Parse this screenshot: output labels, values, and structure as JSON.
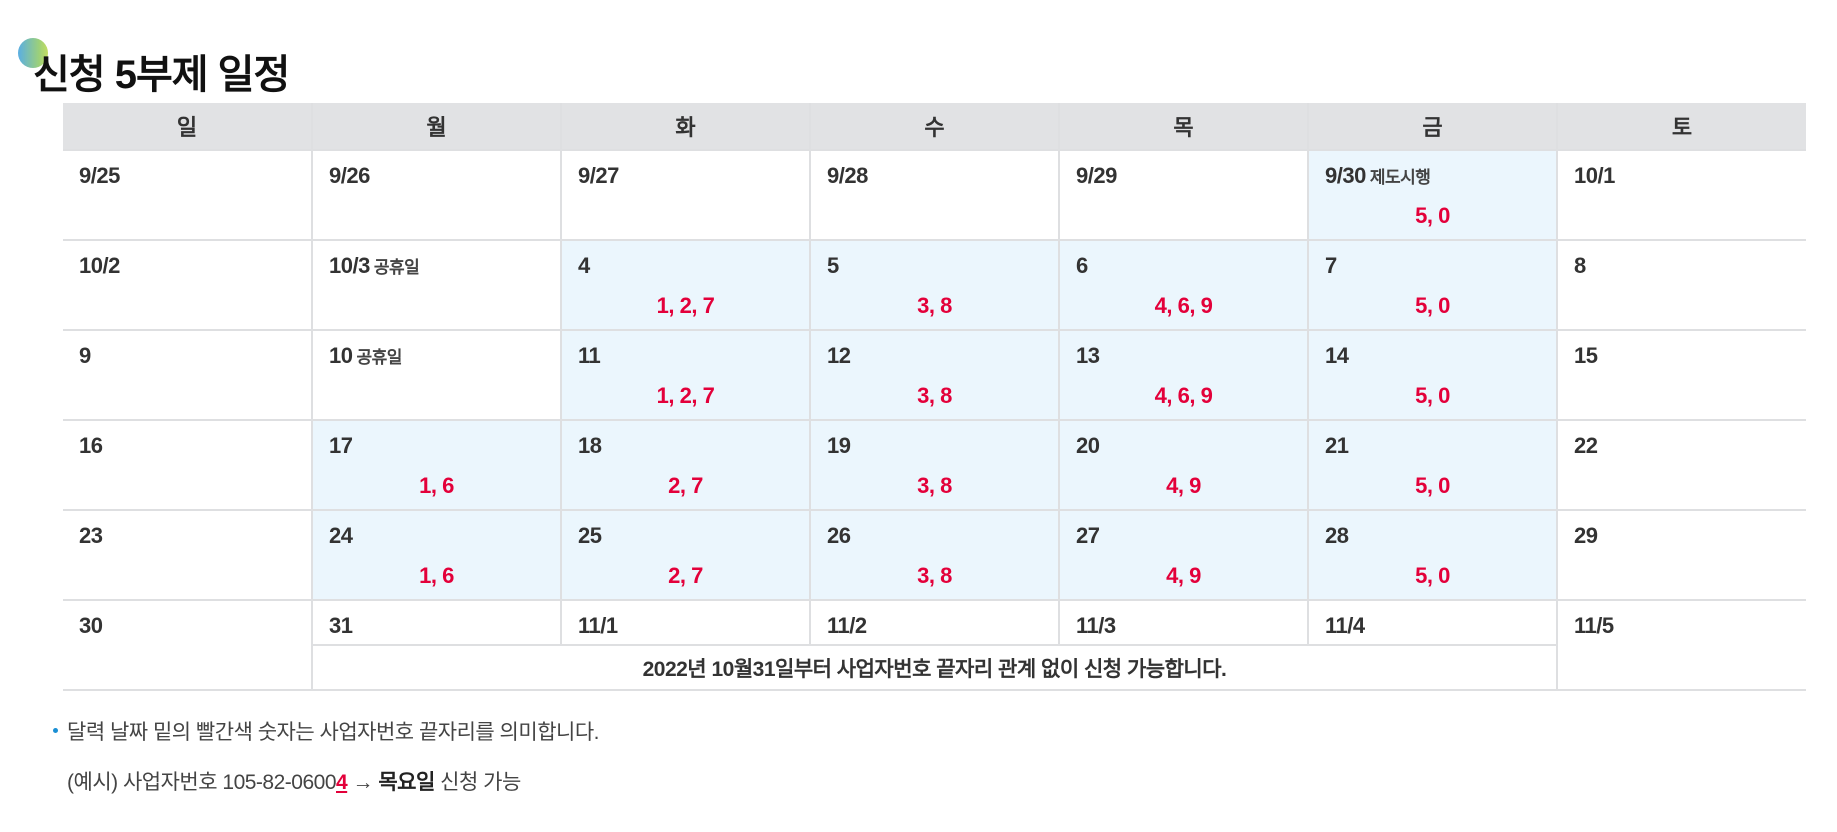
{
  "title": "신청 5부제 일정",
  "colors": {
    "accent_red": "#e3003a",
    "active_bg": "#ebf6fd",
    "header_bg": "#e1e2e4",
    "bullet": "#1a8fd4"
  },
  "weekdays": [
    "일",
    "월",
    "화",
    "수",
    "목",
    "금",
    "토"
  ],
  "weeks": [
    {
      "days": [
        {
          "date": "9/25",
          "tag": "",
          "digits": "",
          "active": false
        },
        {
          "date": "9/26",
          "tag": "",
          "digits": "",
          "active": false
        },
        {
          "date": "9/27",
          "tag": "",
          "digits": "",
          "active": false
        },
        {
          "date": "9/28",
          "tag": "",
          "digits": "",
          "active": false
        },
        {
          "date": "9/29",
          "tag": "",
          "digits": "",
          "active": false
        },
        {
          "date": "9/30",
          "tag": "제도시행",
          "digits": "5, 0",
          "active": true
        },
        {
          "date": "10/1",
          "tag": "",
          "digits": "",
          "active": false
        }
      ]
    },
    {
      "days": [
        {
          "date": "10/2",
          "tag": "",
          "digits": "",
          "active": false
        },
        {
          "date": "10/3",
          "tag": "공휴일",
          "digits": "",
          "active": false
        },
        {
          "date": "4",
          "tag": "",
          "digits": "1, 2, 7",
          "active": true
        },
        {
          "date": "5",
          "tag": "",
          "digits": "3, 8",
          "active": true
        },
        {
          "date": "6",
          "tag": "",
          "digits": "4, 6, 9",
          "active": true
        },
        {
          "date": "7",
          "tag": "",
          "digits": "5, 0",
          "active": true
        },
        {
          "date": "8",
          "tag": "",
          "digits": "",
          "active": false
        }
      ]
    },
    {
      "days": [
        {
          "date": "9",
          "tag": "",
          "digits": "",
          "active": false
        },
        {
          "date": "10",
          "tag": "공휴일",
          "digits": "",
          "active": false
        },
        {
          "date": "11",
          "tag": "",
          "digits": "1, 2, 7",
          "active": true
        },
        {
          "date": "12",
          "tag": "",
          "digits": "3, 8",
          "active": true
        },
        {
          "date": "13",
          "tag": "",
          "digits": "4, 6, 9",
          "active": true
        },
        {
          "date": "14",
          "tag": "",
          "digits": "5, 0",
          "active": true
        },
        {
          "date": "15",
          "tag": "",
          "digits": "",
          "active": false
        }
      ]
    },
    {
      "days": [
        {
          "date": "16",
          "tag": "",
          "digits": "",
          "active": false
        },
        {
          "date": "17",
          "tag": "",
          "digits": "1, 6",
          "active": true
        },
        {
          "date": "18",
          "tag": "",
          "digits": "2, 7",
          "active": true
        },
        {
          "date": "19",
          "tag": "",
          "digits": "3, 8",
          "active": true
        },
        {
          "date": "20",
          "tag": "",
          "digits": "4, 9",
          "active": true
        },
        {
          "date": "21",
          "tag": "",
          "digits": "5, 0",
          "active": true
        },
        {
          "date": "22",
          "tag": "",
          "digits": "",
          "active": false
        }
      ]
    },
    {
      "days": [
        {
          "date": "23",
          "tag": "",
          "digits": "",
          "active": false
        },
        {
          "date": "24",
          "tag": "",
          "digits": "1, 6",
          "active": true
        },
        {
          "date": "25",
          "tag": "",
          "digits": "2, 7",
          "active": true
        },
        {
          "date": "26",
          "tag": "",
          "digits": "3, 8",
          "active": true
        },
        {
          "date": "27",
          "tag": "",
          "digits": "4, 9",
          "active": true
        },
        {
          "date": "28",
          "tag": "",
          "digits": "5, 0",
          "active": true
        },
        {
          "date": "29",
          "tag": "",
          "digits": "",
          "active": false
        }
      ]
    }
  ],
  "last_week": {
    "days": [
      "30",
      "31",
      "11/1",
      "11/2",
      "11/3",
      "11/4",
      "11/5"
    ],
    "note": "2022년 10월31일부터 사업자번호 끝자리 관계 없이 신청 가능합니다."
  },
  "notes": {
    "line1": "달력 날짜 밑의 빨간색 숫자는 사업자번호 끝자리를 의미합니다.",
    "example_prefix": "(예시) 사업자번호 105-82-0600",
    "example_digit": "4",
    "example_arrow": " → ",
    "example_day": "목요일",
    "example_suffix": " 신청 가능"
  }
}
